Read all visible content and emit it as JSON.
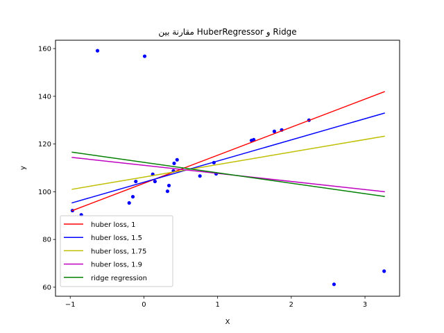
{
  "chart_data": {
    "type": "scatter",
    "title": "مقارنة بين HuberRegressor و Ridge",
    "xlabel": "X",
    "ylabel": "y",
    "xlim": [
      -1.2,
      3.47
    ],
    "ylim": [
      56.2,
      163.5
    ],
    "xticks": [
      -1,
      0,
      1,
      2,
      3
    ],
    "xtick_labels": [
      "−1",
      "0",
      "1",
      "2",
      "3"
    ],
    "yticks": [
      60,
      80,
      100,
      120,
      140,
      160
    ],
    "ytick_labels": [
      "60",
      "80",
      "100",
      "120",
      "140",
      "160"
    ],
    "grid": false,
    "legend_position": "lower left",
    "points": {
      "color": "#0000ff",
      "x": [
        -0.63,
        0.01,
        -0.97,
        -0.85,
        -0.2,
        -0.15,
        -0.11,
        0.12,
        0.15,
        0.32,
        0.34,
        0.4,
        0.41,
        0.45,
        0.76,
        0.95,
        0.98,
        1.46,
        1.49,
        1.77,
        1.87,
        2.24,
        2.58,
        3.26
      ],
      "y": [
        159.1,
        156.8,
        92.1,
        90.3,
        95.3,
        97.9,
        104.3,
        107.3,
        104.3,
        100.2,
        102.6,
        108.7,
        111.9,
        113.4,
        106.6,
        112.2,
        107.5,
        121.5,
        121.8,
        125.3,
        125.9,
        130.0,
        61.2,
        66.7
      ]
    },
    "series": [
      {
        "name": "huber loss, 1",
        "color": "#ff0000",
        "x": [
          -0.98,
          3.27
        ],
        "y": [
          92.0,
          142.0
        ]
      },
      {
        "name": "huber loss, 1.5",
        "color": "#0000ff",
        "x": [
          -0.98,
          3.27
        ],
        "y": [
          95.3,
          133.0
        ]
      },
      {
        "name": "huber loss, 1.75",
        "color": "#bfbf00",
        "x": [
          -0.98,
          3.27
        ],
        "y": [
          101.0,
          123.3
        ]
      },
      {
        "name": "huber loss, 1.9",
        "color": "#bf00bf",
        "x": [
          -0.98,
          3.27
        ],
        "y": [
          114.4,
          100.0
        ]
      },
      {
        "name": "ridge regression",
        "color": "#008000",
        "x": [
          -0.98,
          3.27
        ],
        "y": [
          116.6,
          98.0
        ]
      }
    ]
  }
}
